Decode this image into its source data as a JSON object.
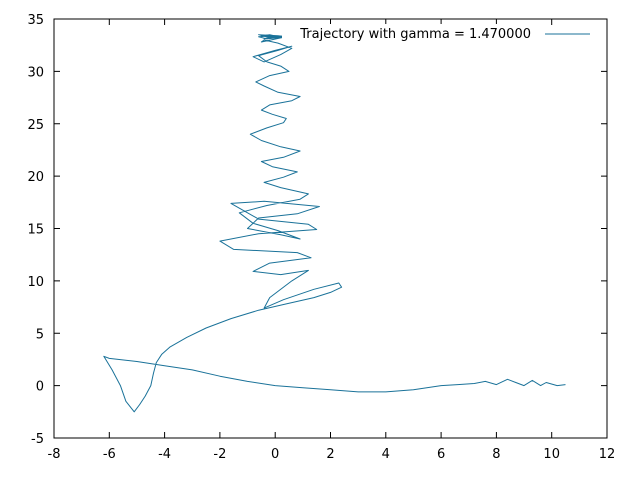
{
  "chart_data": {
    "type": "line",
    "title": "",
    "xlabel": "",
    "ylabel": "",
    "xlim": [
      -8,
      12
    ],
    "ylim": [
      -5,
      35
    ],
    "x_ticks": [
      -8,
      -6,
      -4,
      -2,
      0,
      2,
      4,
      6,
      8,
      10,
      12
    ],
    "y_ticks": [
      -5,
      0,
      5,
      10,
      15,
      20,
      25,
      30,
      35
    ],
    "x_tick_labels": [
      "-8",
      "-6",
      "-4",
      "-2",
      "0",
      "2",
      "4",
      "6",
      "8",
      "10",
      "12"
    ],
    "y_tick_labels": [
      "-5",
      "0",
      "5",
      "10",
      "15",
      "20",
      "25",
      "30",
      "35"
    ],
    "grid": false,
    "legend_position": "top-right",
    "color": "#1a7299",
    "series": [
      {
        "name": "Trajectory with gamma = 1.470000",
        "x": [
          10.5,
          10.2,
          9.8,
          9.6,
          9.3,
          9.0,
          8.7,
          8.4,
          8.0,
          7.6,
          7.2,
          6.6,
          6.0,
          5.0,
          4.0,
          3.0,
          2.0,
          1.0,
          0.0,
          -1.0,
          -2.0,
          -3.0,
          -4.0,
          -5.0,
          -6.0,
          -6.2,
          -5.9,
          -5.6,
          -5.4,
          -5.1,
          -4.9,
          -4.7,
          -4.5,
          -4.4,
          -4.3,
          -4.1,
          -3.8,
          -3.2,
          -2.5,
          -1.6,
          -0.6,
          0.4,
          1.4,
          2.0,
          2.4,
          2.3,
          1.4,
          0.3,
          -0.4,
          -0.2,
          0.6,
          1.2,
          0.2,
          -0.8,
          -0.2,
          1.3,
          0.8,
          -1.5,
          -2.0,
          -0.6,
          1.5,
          1.2,
          -0.6,
          -1.6,
          -0.4,
          1.6,
          0.8,
          -0.6,
          -1.0,
          0.2,
          0.9,
          0.1,
          -0.8,
          -1.3,
          -0.3,
          0.9,
          1.2,
          0.2,
          -0.4,
          0.3,
          0.8,
          -0.1,
          -0.5,
          0.3,
          0.9,
          0.2,
          -0.5,
          -0.9,
          -0.3,
          0.3,
          0.4,
          -0.1,
          -0.5,
          -0.2,
          0.6,
          0.9,
          0.1,
          -0.4,
          -0.7,
          -0.2,
          0.5,
          0.2,
          -0.3,
          -0.6,
          0.1,
          0.6,
          0.0,
          -0.8,
          -0.4,
          0.2,
          0.6,
          0.1,
          -0.4,
          -0.5,
          0.2,
          0.4,
          -0.2,
          -0.6,
          0.1,
          0.4,
          -0.3,
          -0.6,
          -0.1,
          0.3,
          -0.2,
          -0.5,
          0.2,
          0.4,
          -0.1,
          -0.4,
          0.1,
          0.2
        ],
        "y": [
          0.1,
          0.0,
          0.3,
          0.0,
          0.5,
          0.0,
          0.3,
          0.6,
          0.1,
          0.4,
          0.2,
          0.1,
          0.0,
          -0.4,
          -0.6,
          -0.6,
          -0.4,
          -0.2,
          0.0,
          0.4,
          0.9,
          1.5,
          1.9,
          2.3,
          2.6,
          2.8,
          1.5,
          0.0,
          -1.5,
          -2.5,
          -1.8,
          -1.0,
          0.0,
          1.2,
          2.2,
          3.0,
          3.7,
          4.6,
          5.5,
          6.4,
          7.2,
          7.8,
          8.4,
          8.9,
          9.4,
          9.8,
          9.2,
          8.2,
          7.4,
          8.4,
          10.0,
          11.0,
          10.6,
          10.9,
          11.7,
          12.2,
          12.7,
          13.0,
          13.8,
          14.5,
          14.9,
          15.4,
          15.9,
          17.4,
          17.6,
          17.1,
          16.4,
          16.0,
          15.0,
          14.4,
          14.0,
          14.8,
          15.5,
          16.5,
          17.2,
          17.8,
          18.3,
          18.9,
          19.4,
          19.9,
          20.4,
          20.9,
          21.4,
          21.8,
          22.4,
          22.8,
          23.4,
          24.0,
          24.6,
          25.1,
          25.5,
          25.9,
          26.3,
          26.8,
          27.2,
          27.6,
          28.0,
          28.6,
          29.0,
          29.6,
          30.0,
          30.5,
          30.9,
          31.5,
          32.0,
          32.4,
          32.0,
          31.4,
          30.9,
          31.6,
          32.2,
          32.7,
          33.0,
          32.8,
          33.2,
          33.4,
          33.2,
          33.5,
          33.4,
          33.3,
          33.1,
          33.3,
          33.4,
          33.2,
          33.5,
          33.4,
          33.2,
          33.4,
          33.3,
          33.1,
          33.3,
          33.4
        ]
      }
    ]
  }
}
